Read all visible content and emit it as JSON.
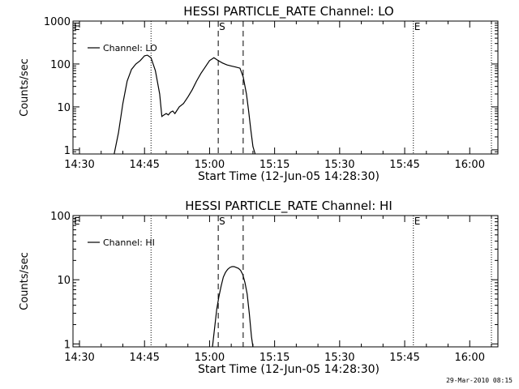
{
  "footer": {
    "timestamp": "29-Mar-2010 08:15"
  },
  "chart_data": [
    {
      "type": "line",
      "title": "HESSI PARTICLE_RATE Channel: LO",
      "xlabel": "Start Time (12-Jun-05 14:28:30)",
      "ylabel": "Counts/sec",
      "yscale": "log",
      "xlim": [
        "14:28:30",
        "16:06:30"
      ],
      "ylim": [
        0.8,
        1000
      ],
      "xticks": [
        "14:30",
        "14:45",
        "15:00",
        "15:15",
        "15:30",
        "15:45",
        "16:00"
      ],
      "yticks": [
        "1",
        "10",
        "100",
        "1000"
      ],
      "legend": {
        "label": "Channel: LO",
        "position": "upper-left"
      },
      "markers": [
        {
          "label": "E",
          "time": "14:28:30",
          "style": "dotted"
        },
        {
          "label": "",
          "time": "14:46:30",
          "style": "dotted"
        },
        {
          "label": "S",
          "time": "15:02:00",
          "style": "dashed"
        },
        {
          "label": "",
          "time": "15:07:45",
          "style": "dashed"
        },
        {
          "label": "E",
          "time": "15:47:00",
          "style": "dotted"
        },
        {
          "label": "",
          "time": "16:05:00",
          "style": "dotted"
        }
      ],
      "series": [
        {
          "x": [
            "14:38:00",
            "14:39:00",
            "14:40:00",
            "14:41:00",
            "14:42:00",
            "14:43:00",
            "14:44:00",
            "14:45:00",
            "14:45:40",
            "14:46:30",
            "14:47:30",
            "14:48:30",
            "14:49:00",
            "14:49:30",
            "14:50:00",
            "14:50:30",
            "14:51:00",
            "14:51:30",
            "14:52:00",
            "14:53:00",
            "14:54:00",
            "14:55:00",
            "14:56:00",
            "14:57:00",
            "14:58:00",
            "14:59:00",
            "15:00:00",
            "15:01:00",
            "15:02:00",
            "15:03:00",
            "15:04:00",
            "15:05:00",
            "15:06:00",
            "15:07:00",
            "15:07:45",
            "15:08:30",
            "15:09:00",
            "15:09:30",
            "15:10:00",
            "15:10:30"
          ],
          "y": [
            0.8,
            2.5,
            12,
            40,
            75,
            100,
            120,
            155,
            160,
            140,
            70,
            20,
            6,
            6.5,
            7,
            6.5,
            7.5,
            8,
            7,
            10,
            12,
            17,
            25,
            40,
            60,
            85,
            120,
            140,
            120,
            105,
            95,
            90,
            85,
            80,
            50,
            20,
            8,
            3,
            1.2,
            0.8
          ]
        }
      ]
    },
    {
      "type": "line",
      "title": "HESSI PARTICLE_RATE Channel: HI",
      "xlabel": "Start Time (12-Jun-05 14:28:30)",
      "ylabel": "Counts/sec",
      "yscale": "log",
      "xlim": [
        "14:28:30",
        "16:06:30"
      ],
      "ylim": [
        0.9,
        100
      ],
      "xticks": [
        "14:30",
        "14:45",
        "15:00",
        "15:15",
        "15:30",
        "15:45",
        "16:00"
      ],
      "yticks": [
        "1",
        "10",
        "100"
      ],
      "legend": {
        "label": "Channel: HI",
        "position": "upper-left"
      },
      "markers": [
        {
          "label": "E",
          "time": "14:28:30",
          "style": "dotted"
        },
        {
          "label": "",
          "time": "14:46:30",
          "style": "dotted"
        },
        {
          "label": "S",
          "time": "15:02:00",
          "style": "dashed"
        },
        {
          "label": "",
          "time": "15:07:45",
          "style": "dashed"
        },
        {
          "label": "E",
          "time": "15:47:00",
          "style": "dotted"
        },
        {
          "label": "",
          "time": "16:05:00",
          "style": "dotted"
        }
      ],
      "series": [
        {
          "x": [
            "15:00:40",
            "15:01:10",
            "15:01:40",
            "15:02:10",
            "15:02:40",
            "15:03:10",
            "15:03:40",
            "15:04:10",
            "15:04:40",
            "15:05:10",
            "15:05:40",
            "15:06:10",
            "15:06:40",
            "15:07:10",
            "15:07:40",
            "15:08:10",
            "15:08:40",
            "15:09:10",
            "15:09:40",
            "15:10:00"
          ],
          "y": [
            0.9,
            1.8,
            3.5,
            5.5,
            8,
            11,
            13,
            14.5,
            15.5,
            16,
            16,
            15.5,
            15,
            14,
            12,
            9,
            6,
            3,
            1.3,
            0.9
          ]
        }
      ]
    }
  ]
}
